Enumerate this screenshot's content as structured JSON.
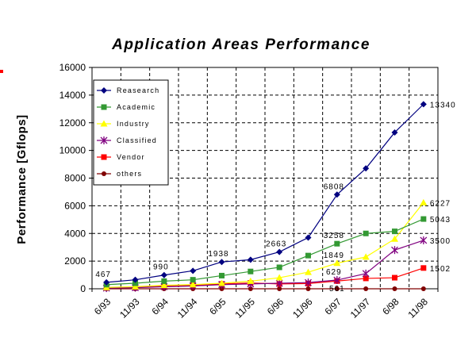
{
  "chart_data": {
    "type": "line",
    "title": "Application Areas Performance",
    "ylabel": "Performance [Gflops]",
    "xlabel": "",
    "ylim": [
      0,
      16000
    ],
    "yticks": [
      0,
      2000,
      4000,
      6000,
      8000,
      10000,
      12000,
      14000,
      16000
    ],
    "categories": [
      "6/93",
      "11/93",
      "6/94",
      "11/94",
      "6/95",
      "11/95",
      "6/96",
      "11/96",
      "6/97",
      "11/97",
      "6/98",
      "11/98"
    ],
    "grid": true,
    "legend": "top-left",
    "series": [
      {
        "name": "Reasearch",
        "color": "#000080",
        "marker": "diamond",
        "values": [
          467,
          650,
          990,
          1300,
          1938,
          2100,
          2663,
          3700,
          6808,
          8700,
          11300,
          13340
        ]
      },
      {
        "name": "Academic",
        "color": "#339933",
        "marker": "square",
        "values": [
          300,
          400,
          550,
          650,
          950,
          1250,
          1550,
          2400,
          3258,
          4000,
          4150,
          5043
        ]
      },
      {
        "name": "Industry",
        "color": "#ffff00",
        "marker": "triangle",
        "values": [
          100,
          150,
          250,
          300,
          400,
          550,
          800,
          1200,
          1849,
          2300,
          3600,
          6227
        ]
      },
      {
        "name": "Classified",
        "color": "#800080",
        "marker": "star",
        "values": [
          50,
          80,
          150,
          200,
          300,
          350,
          400,
          450,
          629,
          1100,
          2800,
          3500
        ]
      },
      {
        "name": "Vendor",
        "color": "#ff0000",
        "marker": "square",
        "values": [
          80,
          120,
          200,
          250,
          350,
          420,
          350,
          380,
          561,
          750,
          800,
          1502
        ]
      },
      {
        "name": "others",
        "color": "#800000",
        "marker": "circle",
        "values": [
          0,
          0,
          0,
          0,
          0,
          0,
          0,
          0,
          0,
          0,
          0,
          0
        ]
      }
    ],
    "annotations": [
      {
        "text": "467",
        "series": 0,
        "index": 0
      },
      {
        "text": "990",
        "series": 0,
        "index": 2
      },
      {
        "text": "1938",
        "series": 0,
        "index": 4
      },
      {
        "text": "2663",
        "series": 0,
        "index": 6
      },
      {
        "text": "6808",
        "series": 0,
        "index": 8
      },
      {
        "text": "3258",
        "series": 1,
        "index": 8
      },
      {
        "text": "1849",
        "series": 2,
        "index": 8
      },
      {
        "text": "629",
        "series": 3,
        "index": 8
      },
      {
        "text": "561",
        "series": 4,
        "index": 8
      },
      {
        "text": "13340",
        "series": 0,
        "index": 11
      },
      {
        "text": "6227",
        "series": 2,
        "index": 11
      },
      {
        "text": "5043",
        "series": 1,
        "index": 11
      },
      {
        "text": "3500",
        "series": 3,
        "index": 11
      },
      {
        "text": "1502",
        "series": 4,
        "index": 11
      }
    ],
    "decor_color": "#ff0000"
  }
}
